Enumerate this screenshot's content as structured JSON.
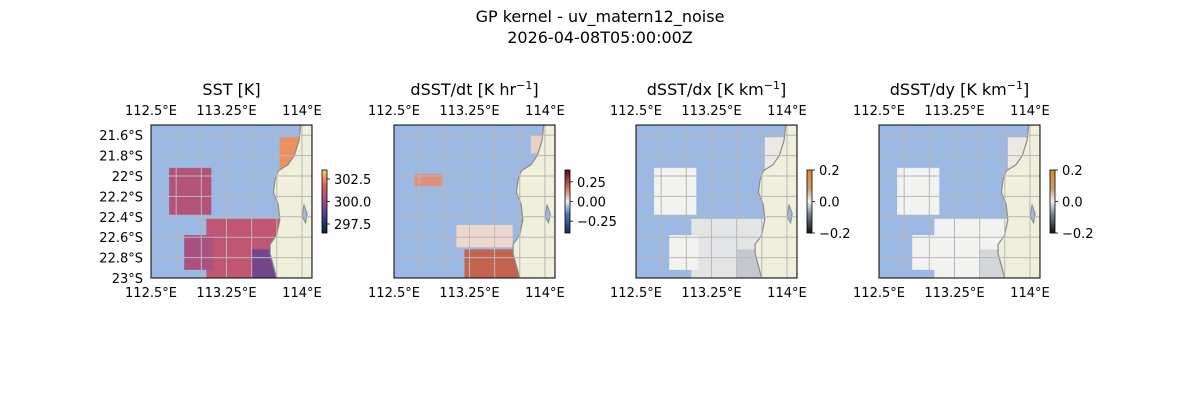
{
  "suptitle": [
    "GP kernel - uv_matern12_noise",
    "2026-04-08T05:00:00Z"
  ],
  "lon_ticks": [
    "112.5°E",
    "113.25°E",
    "114°E"
  ],
  "colors": {
    "ocean": "#9bb9e3",
    "land": "#efefdb",
    "coast": "#8a8a8a",
    "grid": "#b8b8b8"
  },
  "chart_data": [
    {
      "type": "heatmap",
      "title": "SST [K]",
      "title_sup": "",
      "title_after": "",
      "colormap": "thermal",
      "lon_ticks": [
        "112.5°E",
        "113.25°E",
        "114°E"
      ],
      "lat_ticks": [
        "21.6°S",
        "21.8°S",
        "22°S",
        "22.2°S",
        "22.4°S",
        "22.6°S",
        "22.8°S",
        "23°S"
      ],
      "xlim": [
        112.5,
        114.1
      ],
      "ylim": [
        -23.0,
        -21.5
      ],
      "colorbar": {
        "ticks": [
          "302.5",
          "300.0",
          "297.5"
        ],
        "vmin": 296.5,
        "vmax": 303.5
      },
      "patches": [
        {
          "name": "ne-warm-patch",
          "value": 302.5,
          "x0": 113.78,
          "x1": 114.1,
          "y0": -22.1,
          "y1": -21.62
        },
        {
          "name": "w-blob",
          "value": 300.6,
          "x0": 112.68,
          "x1": 113.1,
          "y0": -22.38,
          "y1": -21.92
        },
        {
          "name": "s-block",
          "value": 300.9,
          "x0": 113.05,
          "x1": 113.78,
          "y0": -23.0,
          "y1": -22.42
        },
        {
          "name": "s-west-lobe",
          "value": 300.4,
          "x0": 112.83,
          "x1": 113.12,
          "y0": -22.92,
          "y1": -22.58
        },
        {
          "name": "s-east-cool",
          "value": 299.3,
          "x0": 113.5,
          "x1": 113.82,
          "y0": -23.0,
          "y1": -22.72
        }
      ]
    },
    {
      "type": "heatmap",
      "title": "dSST/dt [K hr",
      "title_sup": "−1",
      "title_after": "]",
      "colormap": "balance",
      "lon_ticks": [
        "112.5°E",
        "113.25°E",
        "114°E"
      ],
      "lat_ticks": [],
      "xlim": [
        112.5,
        114.1
      ],
      "ylim": [
        -23.0,
        -21.5
      ],
      "colorbar": {
        "ticks": [
          "0.25",
          "0.00",
          "−0.25"
        ],
        "vmin": -0.4,
        "vmax": 0.4
      },
      "patches": [
        {
          "name": "ne-patch",
          "value": 0.04,
          "x0": 113.86,
          "x1": 114.06,
          "y0": -21.78,
          "y1": -21.6
        },
        {
          "name": "w-patch",
          "value": 0.12,
          "x0": 112.7,
          "x1": 112.98,
          "y0": -22.1,
          "y1": -21.98
        },
        {
          "name": "s-patch-a",
          "value": 0.03,
          "x0": 113.12,
          "x1": 113.68,
          "y0": -22.7,
          "y1": -22.48
        },
        {
          "name": "s-patch-b",
          "value": 0.2,
          "x0": 113.2,
          "x1": 113.75,
          "y0": -23.0,
          "y1": -22.72
        }
      ]
    },
    {
      "type": "heatmap",
      "title": "dSST/dx [K km",
      "title_sup": "−1",
      "title_after": "]",
      "colormap": "diverging",
      "lon_ticks": [
        "112.5°E",
        "113.25°E",
        "114°E"
      ],
      "lat_ticks": [],
      "xlim": [
        112.5,
        114.1
      ],
      "ylim": [
        -23.0,
        -21.5
      ],
      "colorbar": {
        "ticks": [
          "0.2",
          "0.0",
          "−0.2"
        ],
        "vmin": -0.2,
        "vmax": 0.2
      },
      "patches": [
        {
          "name": "ne-patch",
          "value": 0.01,
          "x0": 113.78,
          "x1": 114.1,
          "y0": -22.1,
          "y1": -21.62
        },
        {
          "name": "w-blob",
          "value": 0.0,
          "x0": 112.68,
          "x1": 113.1,
          "y0": -22.38,
          "y1": -21.92
        },
        {
          "name": "s-block",
          "value": -0.01,
          "x0": 113.05,
          "x1": 113.78,
          "y0": -23.0,
          "y1": -22.42
        },
        {
          "name": "s-west-lobe",
          "value": 0.0,
          "x0": 112.83,
          "x1": 113.12,
          "y0": -22.92,
          "y1": -22.58
        },
        {
          "name": "s-east-strip",
          "value": -0.03,
          "x0": 113.5,
          "x1": 113.82,
          "y0": -23.0,
          "y1": -22.72
        }
      ]
    },
    {
      "type": "heatmap",
      "title": "dSST/dy [K km",
      "title_sup": "−1",
      "title_after": "]",
      "colormap": "diverging",
      "lon_ticks": [
        "112.5°E",
        "113.25°E",
        "114°E"
      ],
      "lat_ticks": [],
      "xlim": [
        112.5,
        114.1
      ],
      "ylim": [
        -23.0,
        -21.5
      ],
      "colorbar": {
        "ticks": [
          "0.2",
          "0.0",
          "−0.2"
        ],
        "vmin": -0.2,
        "vmax": 0.2
      },
      "patches": [
        {
          "name": "ne-patch",
          "value": 0.01,
          "x0": 113.78,
          "x1": 114.1,
          "y0": -22.1,
          "y1": -21.62
        },
        {
          "name": "w-blob",
          "value": 0.0,
          "x0": 112.68,
          "x1": 113.1,
          "y0": -22.38,
          "y1": -21.92
        },
        {
          "name": "s-block",
          "value": 0.0,
          "x0": 113.05,
          "x1": 113.78,
          "y0": -23.0,
          "y1": -22.42
        },
        {
          "name": "s-west-lobe",
          "value": 0.0,
          "x0": 112.83,
          "x1": 113.12,
          "y0": -22.92,
          "y1": -22.58
        },
        {
          "name": "s-east-strip",
          "value": -0.02,
          "x0": 113.5,
          "x1": 113.82,
          "y0": -23.0,
          "y1": -22.72
        }
      ]
    }
  ]
}
